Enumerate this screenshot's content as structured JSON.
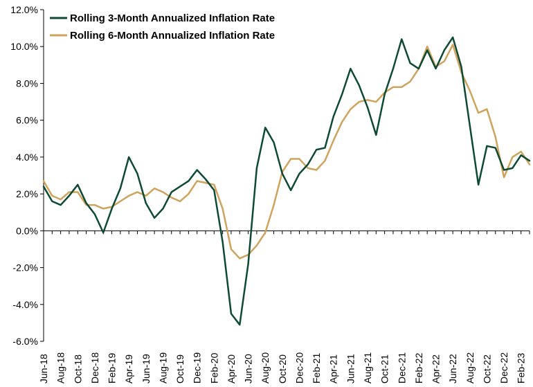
{
  "colors": {
    "series_3m": "#0d4a33",
    "series_6m": "#cfa35c",
    "axis": "#000000",
    "background": "#ffffff"
  },
  "chart_data": {
    "type": "line",
    "title": "",
    "xlabel": "",
    "ylabel": "",
    "ylim": [
      -6,
      12
    ],
    "y_ticks": [
      -6,
      -4,
      -2,
      0,
      2,
      4,
      6,
      8,
      10,
      12
    ],
    "y_tick_labels": [
      "-6.0%",
      "-4.0%",
      "-2.0%",
      "0.0%",
      "2.0%",
      "4.0%",
      "6.0%",
      "8.0%",
      "10.0%",
      "12.0%"
    ],
    "grid": false,
    "legend_position": "top-left",
    "x": [
      "Jun-18",
      "Jul-18",
      "Aug-18",
      "Sep-18",
      "Oct-18",
      "Nov-18",
      "Dec-18",
      "Jan-19",
      "Feb-19",
      "Mar-19",
      "Apr-19",
      "May-19",
      "Jun-19",
      "Jul-19",
      "Aug-19",
      "Sep-19",
      "Oct-19",
      "Nov-19",
      "Dec-19",
      "Jan-20",
      "Feb-20",
      "Mar-20",
      "Apr-20",
      "May-20",
      "Jun-20",
      "Jul-20",
      "Aug-20",
      "Sep-20",
      "Oct-20",
      "Nov-20",
      "Dec-20",
      "Jan-21",
      "Feb-21",
      "Mar-21",
      "Apr-21",
      "May-21",
      "Jun-21",
      "Jul-21",
      "Aug-21",
      "Sep-21",
      "Oct-21",
      "Nov-21",
      "Dec-21",
      "Jan-22",
      "Feb-22",
      "Mar-22",
      "Apr-22",
      "May-22",
      "Jun-22",
      "Jul-22",
      "Aug-22",
      "Sep-22",
      "Oct-22",
      "Nov-22",
      "Dec-22",
      "Jan-23",
      "Feb-23",
      "Mar-23"
    ],
    "x_tick_labels": [
      "Jun-18",
      "Aug-18",
      "Oct-18",
      "Dec-18",
      "Feb-19",
      "Apr-19",
      "Jun-19",
      "Aug-19",
      "Oct-19",
      "Dec-19",
      "Feb-20",
      "Apr-20",
      "Jun-20",
      "Aug-20",
      "Oct-20",
      "Dec-20",
      "Feb-21",
      "Apr-21",
      "Jun-21",
      "Aug-21",
      "Oct-21",
      "Dec-21",
      "Feb-22",
      "Apr-22",
      "Jun-22",
      "Aug-22",
      "Oct-22",
      "Dec-22",
      "Feb-23"
    ],
    "series": [
      {
        "name": "Rolling 3-Month Annualized Inflation Rate",
        "color_key": "series_3m",
        "values": [
          2.4,
          1.6,
          1.4,
          1.9,
          2.5,
          1.5,
          0.9,
          -0.1,
          1.2,
          2.3,
          4.0,
          3.1,
          1.5,
          0.7,
          1.2,
          2.1,
          2.4,
          2.7,
          3.3,
          2.8,
          2.2,
          -0.6,
          -4.5,
          -5.1,
          -1.8,
          3.4,
          5.6,
          4.8,
          3.1,
          2.2,
          3.1,
          3.6,
          4.4,
          4.5,
          6.2,
          7.4,
          8.8,
          7.9,
          6.7,
          5.2,
          7.4,
          8.8,
          10.4,
          9.1,
          8.8,
          9.8,
          8.8,
          9.8,
          10.5,
          8.9,
          5.7,
          2.5,
          4.6,
          4.5,
          3.3,
          3.4,
          4.1,
          3.8
        ]
      },
      {
        "name": "Rolling 6-Month Annualized Inflation Rate",
        "color_key": "series_6m",
        "values": [
          2.7,
          1.9,
          1.7,
          2.1,
          2.1,
          1.4,
          1.4,
          1.2,
          1.3,
          1.6,
          1.9,
          2.1,
          1.9,
          2.3,
          2.1,
          1.8,
          1.6,
          2.0,
          2.7,
          2.6,
          2.5,
          1.2,
          -1.0,
          -1.5,
          -1.3,
          -0.8,
          -0.1,
          1.4,
          3.2,
          3.9,
          3.9,
          3.4,
          3.3,
          3.8,
          4.9,
          5.9,
          6.6,
          7.0,
          7.1,
          7.0,
          7.5,
          7.8,
          7.8,
          8.1,
          8.8,
          10.0,
          8.9,
          9.2,
          10.1,
          8.6,
          7.6,
          6.4,
          6.6,
          5.1,
          2.9,
          4.0,
          4.3,
          3.6
        ]
      }
    ]
  }
}
